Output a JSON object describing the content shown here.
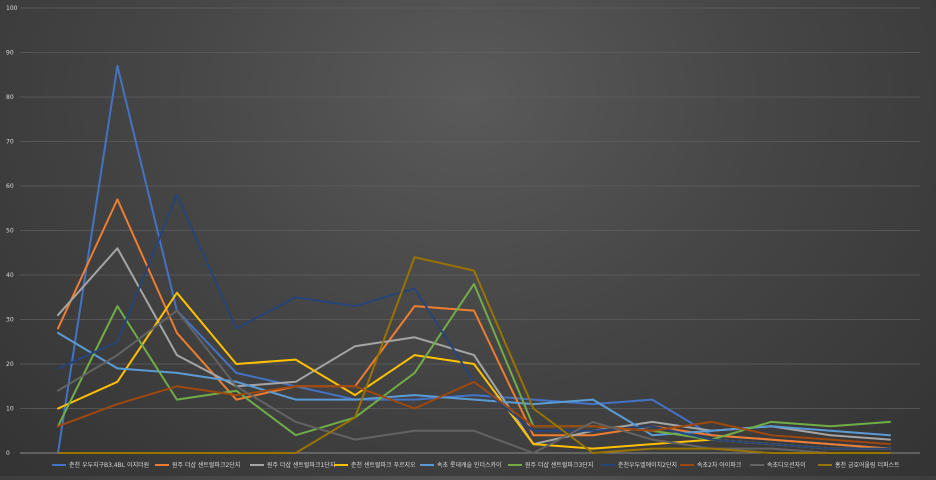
{
  "chart_data": {
    "type": "line",
    "title": "",
    "xlabel": "",
    "ylabel": "",
    "ylim": [
      0,
      100
    ],
    "y_ticks": [
      "0",
      "10",
      "20",
      "30",
      "40",
      "50",
      "60",
      "70",
      "80",
      "90",
      "100"
    ],
    "grid": true,
    "legend_position": "bottom",
    "x_tick_labels_visible": false,
    "n_points": 15,
    "series": [
      {
        "name": "춘천 우두지구B3,4BL 이지더원",
        "color": "#4472c4",
        "values": [
          0,
          87,
          32,
          18,
          15,
          12,
          12,
          13,
          12,
          11,
          12,
          4,
          3,
          2,
          1
        ]
      },
      {
        "name": "원주 더샵 센트럴파크2단지",
        "color": "#ed7d31",
        "values": [
          28,
          57,
          27,
          12,
          15,
          15,
          33,
          32,
          4,
          4,
          6,
          4,
          3,
          2,
          1
        ]
      },
      {
        "name": "원주 더샵 센트럴파크1단지",
        "color": "#a5a5a5",
        "values": [
          31,
          46,
          22,
          15,
          16,
          24,
          26,
          22,
          2,
          5,
          7,
          5,
          6,
          4,
          3
        ]
      },
      {
        "name": "춘천 센트럴파크 푸르지오",
        "color": "#ffc000",
        "values": [
          10,
          16,
          36,
          20,
          21,
          13,
          22,
          20,
          2,
          1,
          2,
          3,
          2,
          1,
          1
        ]
      },
      {
        "name": "속초 롯데캐슬 인더스카이",
        "color": "#5b9bd5",
        "values": [
          27,
          19,
          18,
          16,
          12,
          12,
          13,
          12,
          11,
          12,
          4,
          5,
          6,
          5,
          4
        ]
      },
      {
        "name": "원주 더샵 센트럴파크3단지",
        "color": "#70ad47",
        "values": [
          6,
          33,
          12,
          14,
          4,
          8,
          18,
          38,
          6,
          6,
          5,
          3,
          7,
          6,
          7
        ]
      },
      {
        "name": "춘천우두엘에이치2단지",
        "color": "#264478",
        "values": [
          19,
          25,
          58,
          28,
          35,
          33,
          37,
          16,
          5,
          5,
          6,
          3,
          2,
          1,
          1
        ]
      },
      {
        "name": "속초2차 아이파크",
        "color": "#9e480e",
        "values": [
          6,
          11,
          15,
          13,
          15,
          15,
          10,
          16,
          6,
          6,
          5,
          7,
          4,
          3,
          2
        ]
      },
      {
        "name": "속초디오션자이",
        "color": "#636363",
        "values": [
          14,
          22,
          32,
          15,
          7,
          3,
          5,
          5,
          0,
          7,
          3,
          1,
          1,
          0,
          0
        ]
      },
      {
        "name": "홍천 금호어울림 더퍼스트",
        "color": "#997300",
        "values": [
          0,
          0,
          0,
          0,
          0,
          8,
          44,
          41,
          10,
          0,
          1,
          1,
          0,
          0,
          0
        ]
      }
    ]
  }
}
